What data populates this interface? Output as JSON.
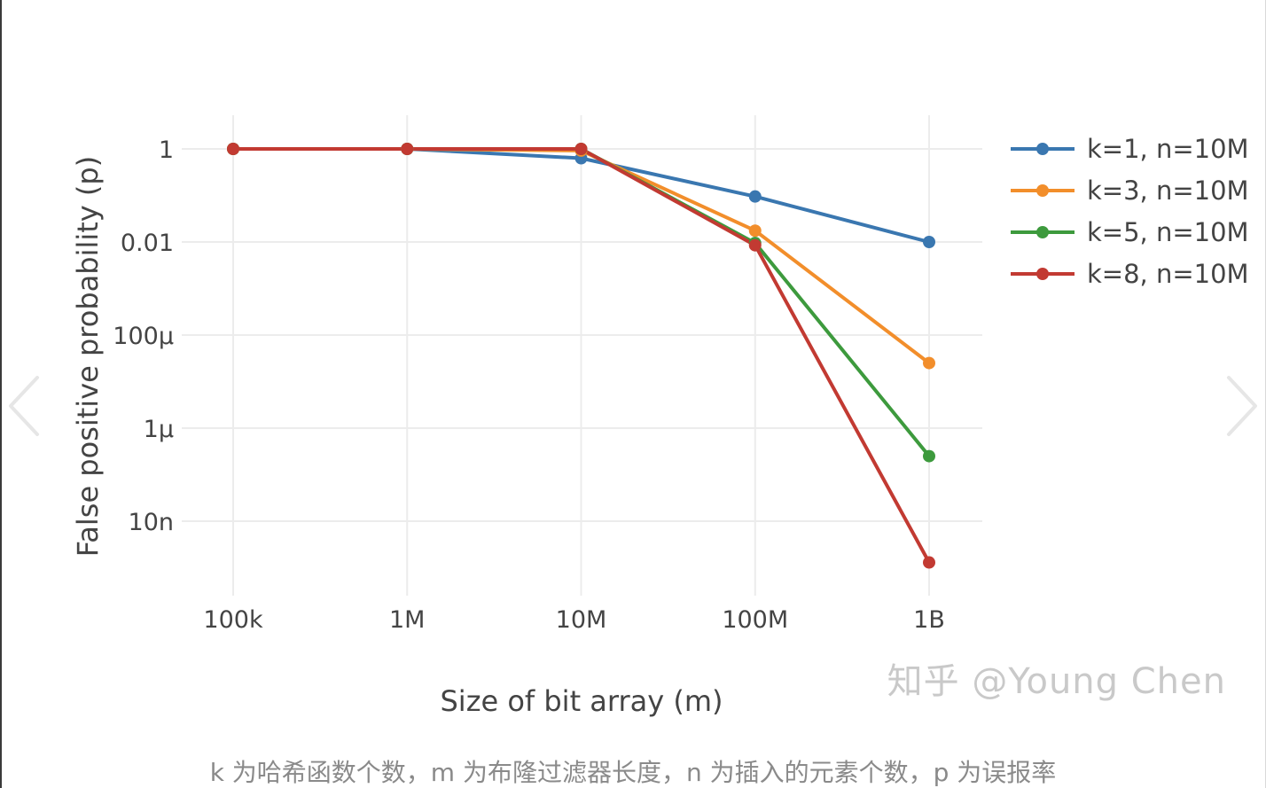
{
  "viewer": {
    "prev_icon": "chevron-left-icon",
    "next_icon": "chevron-right-icon",
    "caption": "k 为哈希函数个数，m 为布隆过滤器长度，n 为插入的元素个数，p 为误报率"
  },
  "watermark": "知乎 @Young Chen",
  "chart_data": {
    "type": "line",
    "title": "",
    "xlabel": "Size of bit array (m)",
    "ylabel": "False positive probability (p)",
    "x_scale": "log",
    "y_scale": "log",
    "x": [
      100000,
      1000000,
      10000000,
      100000000,
      1000000000
    ],
    "x_tick_values": [
      100000,
      1000000,
      10000000,
      100000000,
      1000000000
    ],
    "x_tick_labels": [
      "100k",
      "1M",
      "10M",
      "100M",
      "1B"
    ],
    "y_tick_values": [
      1,
      0.01,
      0.0001,
      1e-06,
      1e-08
    ],
    "y_tick_labels": [
      "1",
      "0.01",
      "100μ",
      "1μ",
      "10n"
    ],
    "xlim": [
      100000,
      1000000000
    ],
    "ylim": [
      4.5e-10,
      2.5
    ],
    "grid": true,
    "legend_position": "right",
    "series": [
      {
        "name": "k=1, n=10M",
        "color": "#3a77b0",
        "values": [
          1.0,
          1.0,
          0.63,
          0.095,
          0.01
        ]
      },
      {
        "name": "k=3, n=10M",
        "color": "#f28e2b",
        "values": [
          1.0,
          1.0,
          0.92,
          0.0175,
          2.5e-05
        ]
      },
      {
        "name": "k=5, n=10M",
        "color": "#3d9a3d",
        "values": [
          1.0,
          1.0,
          1.0,
          0.0095,
          2.5e-07
        ]
      },
      {
        "name": "k=8, n=10M",
        "color": "#c23a32",
        "values": [
          1.0,
          1.0,
          1.0,
          0.0085,
          1.3e-09
        ]
      }
    ]
  }
}
